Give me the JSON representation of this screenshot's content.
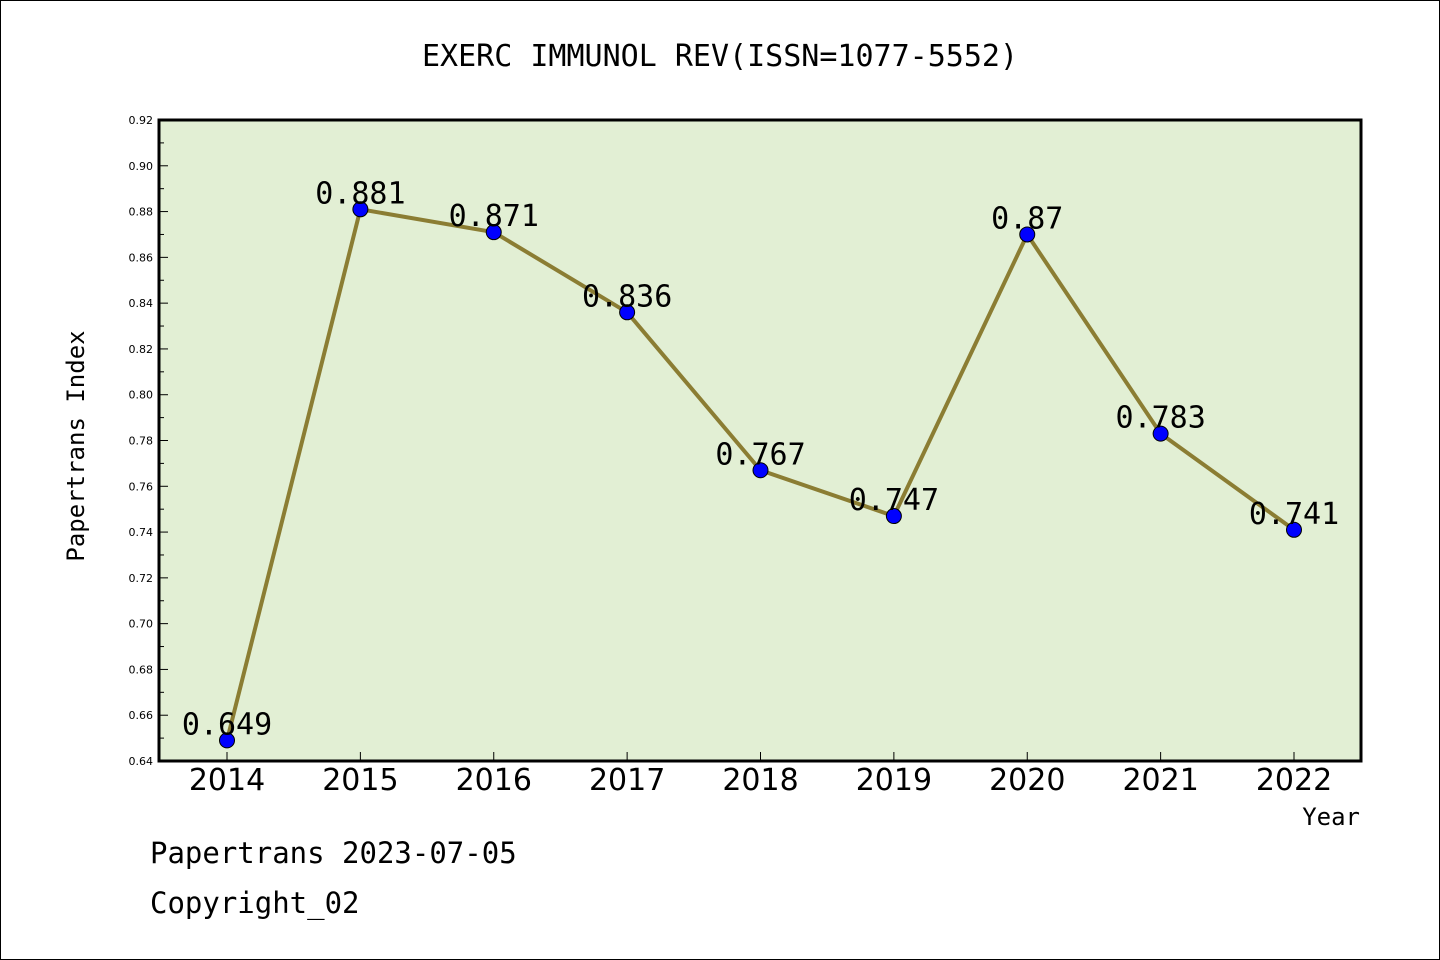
{
  "chart_data": {
    "type": "line",
    "title": "EXERC IMMUNOL REV(ISSN=1077-5552)",
    "xlabel": "Year",
    "ylabel": "Papertrans Index",
    "categories": [
      "2014",
      "2015",
      "2016",
      "2017",
      "2018",
      "2019",
      "2020",
      "2021",
      "2022"
    ],
    "values": [
      0.649,
      0.881,
      0.871,
      0.836,
      0.767,
      0.747,
      0.87,
      0.783,
      0.741
    ],
    "data_labels": [
      "0.649",
      "0.881",
      "0.871",
      "0.836",
      "0.767",
      "0.747",
      "0.87",
      "0.783",
      "0.741"
    ],
    "ylim": [
      0.64,
      0.92
    ],
    "yticks": [
      "0.64",
      "0.66",
      "0.68",
      "0.70",
      "0.72",
      "0.74",
      "0.76",
      "0.78",
      "0.80",
      "0.82",
      "0.84",
      "0.86",
      "0.88",
      "0.90",
      "0.92"
    ],
    "grid": false,
    "colors": {
      "plot_background": "#e2efd4",
      "line": "#8b7d33",
      "marker": "#0000ff"
    }
  },
  "footer": {
    "source": "Papertrans 2023-07-05",
    "copyright": "Copyright_02"
  }
}
